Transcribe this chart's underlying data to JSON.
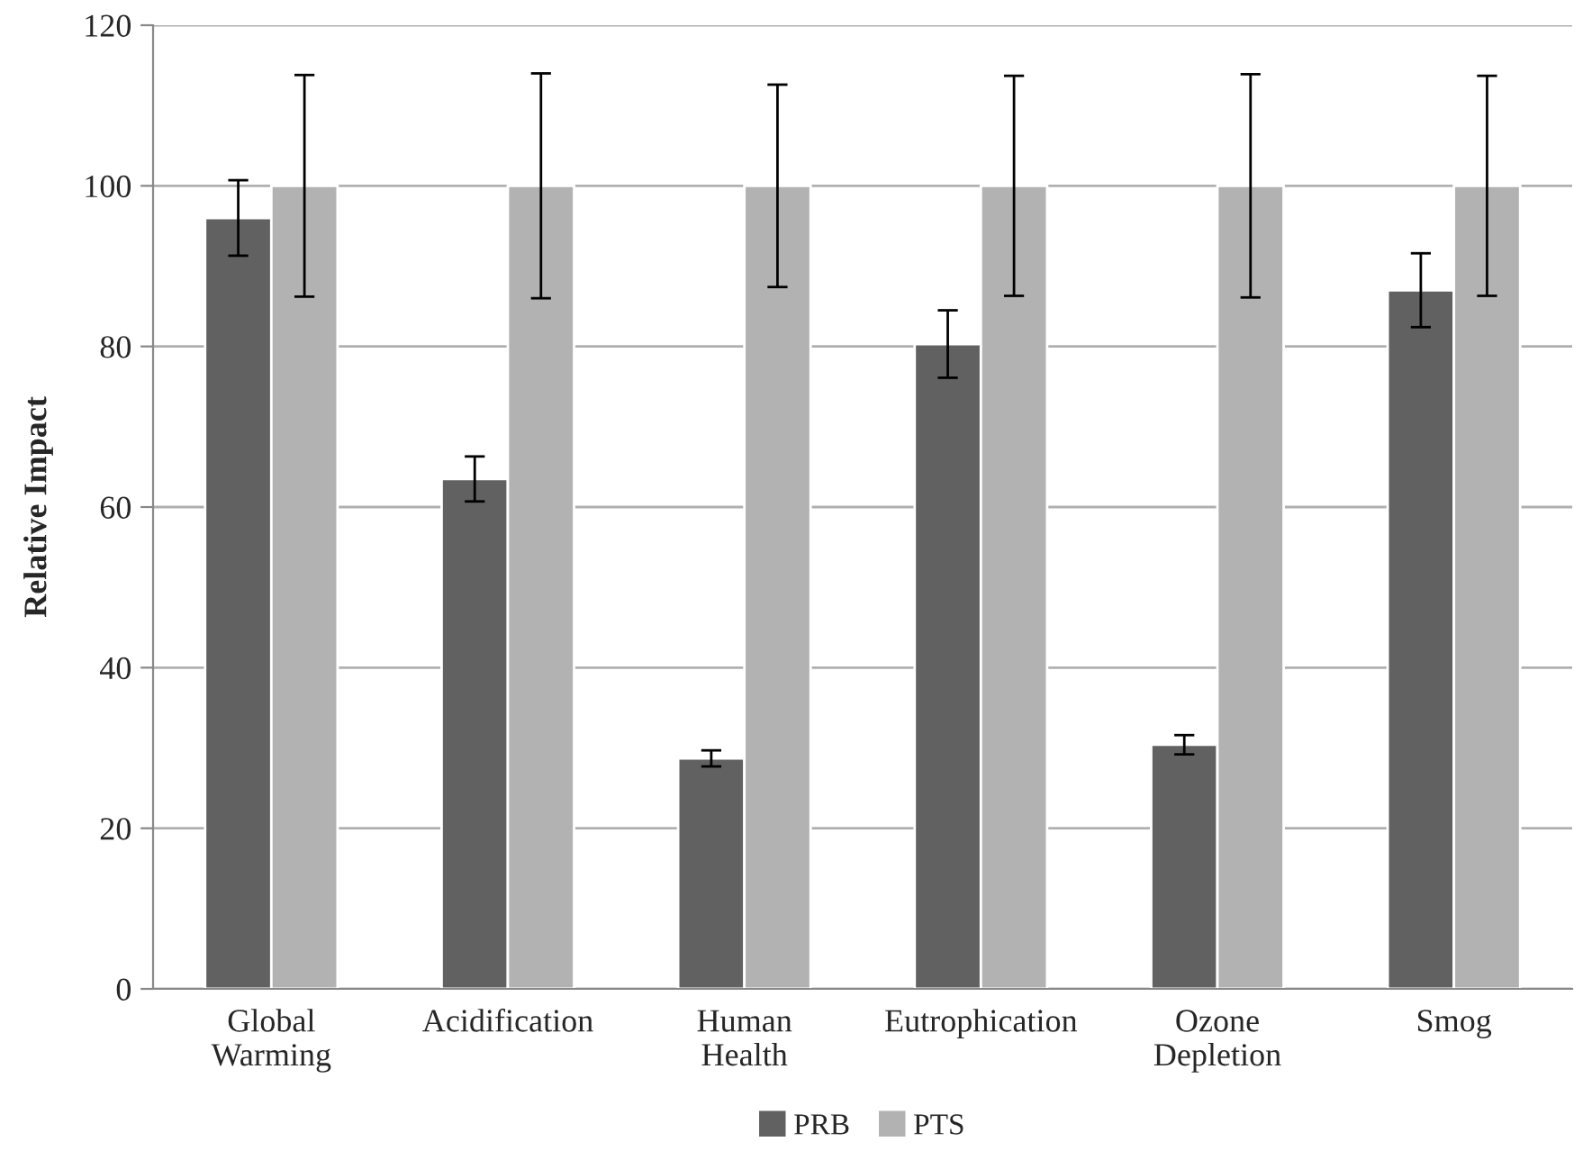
{
  "chart_data": {
    "type": "bar",
    "ylabel": "Relative Impact",
    "categories": [
      "Global\nWarming",
      "Acidification",
      "Human\nHealth",
      "Eutrophication",
      "Ozone\nDepletion",
      "Smog"
    ],
    "series": [
      {
        "name": "PRB",
        "color": "#616161",
        "values": [
          96,
          63.5,
          28.7,
          80.3,
          30.4,
          87
        ],
        "errors": [
          4.7,
          2.8,
          1,
          4.2,
          1.2,
          4.6
        ]
      },
      {
        "name": "PTS",
        "color": "#b2b2b2",
        "values": [
          100,
          100,
          100,
          100,
          100,
          100
        ],
        "errors": [
          13.8,
          14,
          12.6,
          13.7,
          13.9,
          13.7
        ]
      }
    ],
    "ylim": [
      0,
      120
    ],
    "yticks": [
      0,
      20,
      40,
      60,
      80,
      100,
      120
    ],
    "grid": "y",
    "legend": "bottom"
  }
}
